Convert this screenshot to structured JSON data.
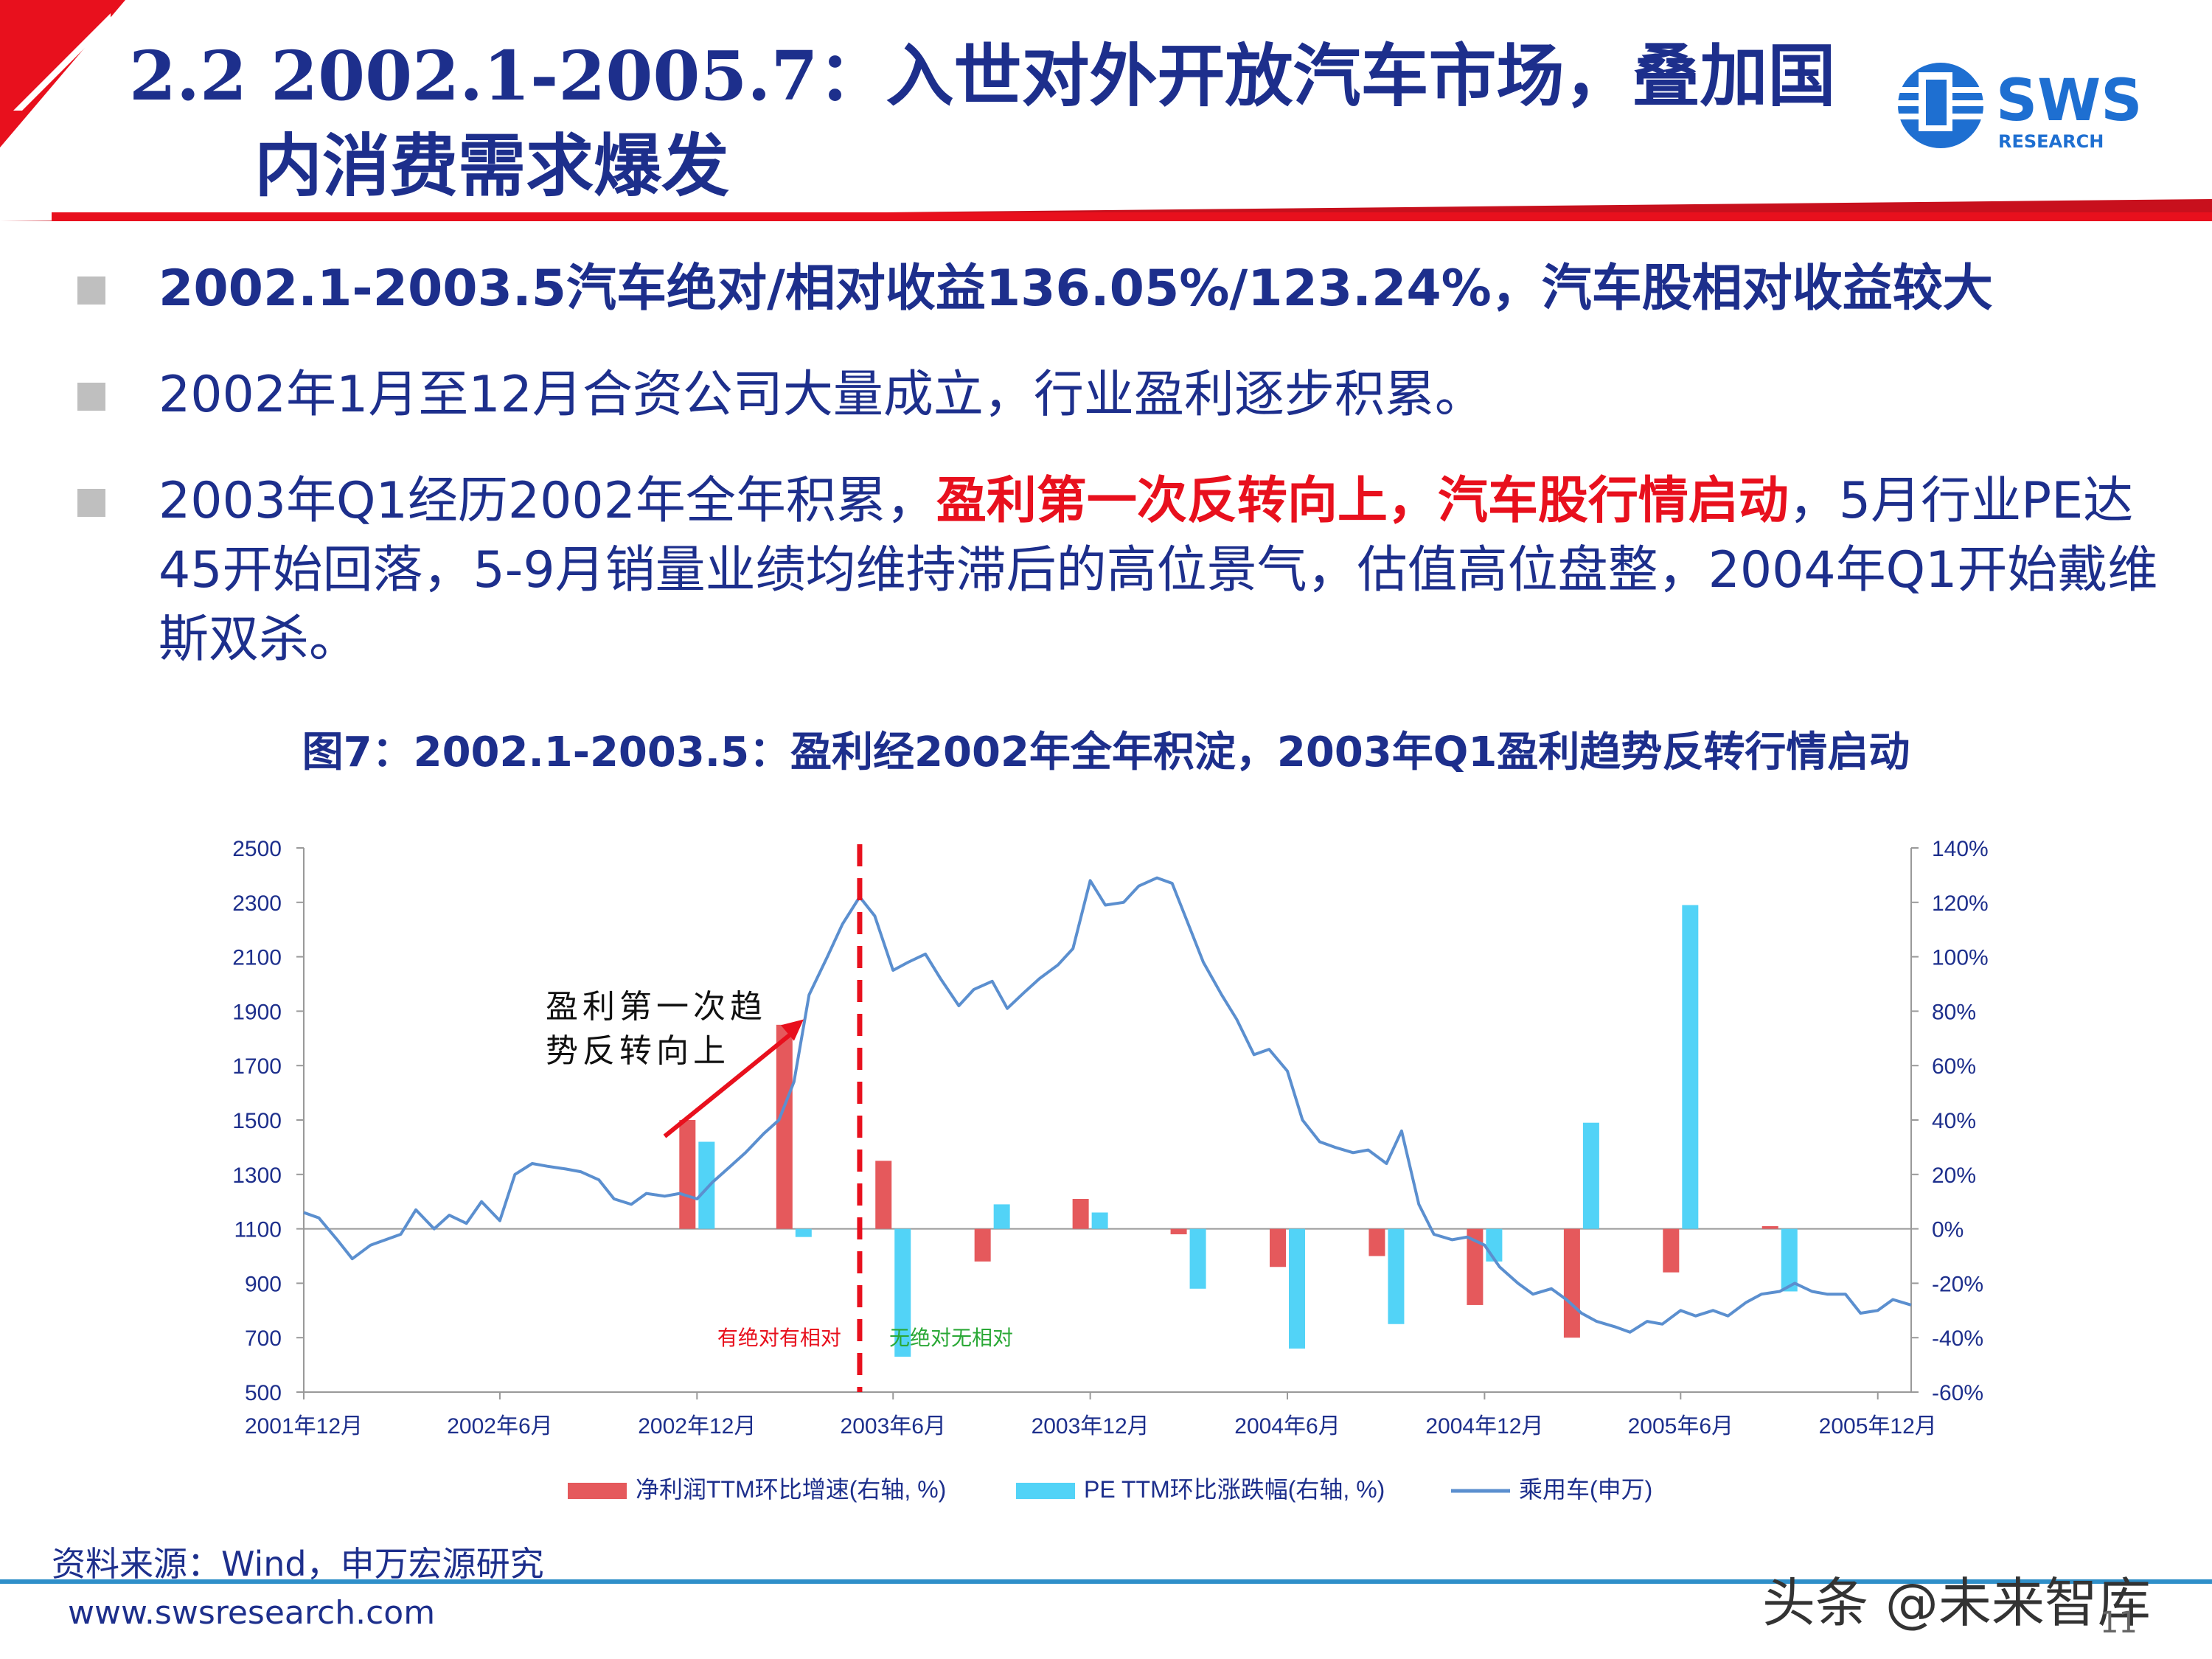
{
  "header": {
    "title_line1": "2.2 2002.1-2005.7：入世对外开放汽车市场，叠加国",
    "title_line2": "内消费需求爆发",
    "logo_text": "SWS",
    "logo_sub": "RESEARCH"
  },
  "colors": {
    "navy": "#1d2f8c",
    "red": "#e8101d",
    "bar_red": "#e5595c",
    "bar_cyan": "#52d3f7",
    "line_blue": "#5b8fcf"
  },
  "bullets": [
    {
      "text": "2002.1-2003.5汽车绝对/相对收益136.05%/123.24%，汽车股相对收益较大"
    },
    {
      "text": "2002年1月至12月合资公司大量成立，行业盈利逐步积累。"
    },
    {
      "before": "2003年Q1经历2002年全年积累，",
      "highlight": "盈利第一次反转向上，汽车股行情启动",
      "after": "，5月行业PE达45开始回落，5-9月销量业绩均维持滞后的高位景气，估值高位盘整，2004年Q1开始戴维斯双杀。"
    }
  ],
  "figure_title": "图7：2002.1-2003.5：盈利经2002年全年积淀，2003年Q1盈利趋势反转行情启动",
  "chart_data": {
    "type": "bar+line",
    "left_axis": {
      "min": 500,
      "max": 2500,
      "ticks": [
        "2500",
        "2300",
        "2100",
        "1900",
        "1700",
        "1500",
        "1300",
        "1100",
        "900",
        "700",
        "500"
      ]
    },
    "right_axis": {
      "min": -60,
      "max": 140,
      "ticks": [
        "140%",
        "120%",
        "100%",
        "80%",
        "60%",
        "40%",
        "20%",
        "0%",
        "-20%",
        "-40%",
        "-60%"
      ]
    },
    "x_range": [
      "2001-12",
      "2006-01"
    ],
    "x_ticks": [
      {
        "date": "2001-12",
        "label": "2001年12月"
      },
      {
        "date": "2002-06",
        "label": "2002年6月"
      },
      {
        "date": "2002-12",
        "label": "2002年12月"
      },
      {
        "date": "2003-06",
        "label": "2003年6月"
      },
      {
        "date": "2003-12",
        "label": "2003年12月"
      },
      {
        "date": "2004-06",
        "label": "2004年6月"
      },
      {
        "date": "2004-12",
        "label": "2004年12月"
      },
      {
        "date": "2005-06",
        "label": "2005年6月"
      },
      {
        "date": "2005-12",
        "label": "2005年12月"
      }
    ],
    "bar_series": [
      {
        "name": "净利润TTM环比增速(右轴, %)",
        "color": "#e5595c",
        "points": [
          [
            "2002-12",
            40
          ],
          [
            "2003-03",
            75
          ],
          [
            "2003-06",
            25
          ],
          [
            "2003-09",
            -12
          ],
          [
            "2003-12",
            11
          ],
          [
            "2004-03",
            -2
          ],
          [
            "2004-06",
            -14
          ],
          [
            "2004-09",
            -10
          ],
          [
            "2004-12",
            -28
          ],
          [
            "2005-03",
            -40
          ],
          [
            "2005-06",
            -16
          ],
          [
            "2005-09",
            1
          ]
        ]
      },
      {
        "name": "PE TTM环比涨跌幅(右轴, %)",
        "color": "#52d3f7",
        "points": [
          [
            "2002-12",
            32
          ],
          [
            "2003-03",
            -3
          ],
          [
            "2003-06",
            -47
          ],
          [
            "2003-09",
            9
          ],
          [
            "2003-12",
            6
          ],
          [
            "2004-03",
            -22
          ],
          [
            "2004-06",
            -44
          ],
          [
            "2004-09",
            -35
          ],
          [
            "2004-12",
            -12
          ],
          [
            "2005-03",
            39
          ],
          [
            "2005-06",
            119
          ],
          [
            "2005-09",
            -23
          ]
        ]
      }
    ],
    "line_series": {
      "name": "乘用车(申万)",
      "color": "#5b8fcf",
      "points": [
        [
          "2001-12-01",
          1160
        ],
        [
          "2001-12-15",
          1140
        ],
        [
          "2002-01-01",
          1060
        ],
        [
          "2002-01-15",
          990
        ],
        [
          "2002-02-01",
          1040
        ],
        [
          "2002-02-15",
          1060
        ],
        [
          "2002-03-01",
          1080
        ],
        [
          "2002-03-15",
          1170
        ],
        [
          "2002-04-01",
          1100
        ],
        [
          "2002-04-15",
          1150
        ],
        [
          "2002-05-01",
          1120
        ],
        [
          "2002-05-15",
          1200
        ],
        [
          "2002-06-01",
          1130
        ],
        [
          "2002-06-15",
          1300
        ],
        [
          "2002-07-01",
          1340
        ],
        [
          "2002-07-15",
          1330
        ],
        [
          "2002-08-01",
          1320
        ],
        [
          "2002-08-15",
          1310
        ],
        [
          "2002-09-01",
          1280
        ],
        [
          "2002-09-15",
          1210
        ],
        [
          "2002-10-01",
          1190
        ],
        [
          "2002-10-15",
          1230
        ],
        [
          "2002-11-01",
          1220
        ],
        [
          "2002-11-15",
          1230
        ],
        [
          "2002-12-01",
          1210
        ],
        [
          "2002-12-15",
          1270
        ],
        [
          "2003-01-01",
          1330
        ],
        [
          "2003-01-15",
          1380
        ],
        [
          "2003-02-01",
          1450
        ],
        [
          "2003-02-15",
          1500
        ],
        [
          "2003-03-01",
          1640
        ],
        [
          "2003-03-15",
          1960
        ],
        [
          "2003-04-01",
          2100
        ],
        [
          "2003-04-15",
          2220
        ],
        [
          "2003-05-01",
          2320
        ],
        [
          "2003-05-15",
          2250
        ],
        [
          "2003-06-01",
          2050
        ],
        [
          "2003-06-15",
          2080
        ],
        [
          "2003-07-01",
          2110
        ],
        [
          "2003-07-15",
          2020
        ],
        [
          "2003-08-01",
          1920
        ],
        [
          "2003-08-15",
          1980
        ],
        [
          "2003-09-01",
          2010
        ],
        [
          "2003-09-15",
          1910
        ],
        [
          "2003-10-01",
          1970
        ],
        [
          "2003-10-15",
          2020
        ],
        [
          "2003-11-01",
          2070
        ],
        [
          "2003-11-15",
          2130
        ],
        [
          "2003-12-01",
          2380
        ],
        [
          "2003-12-15",
          2290
        ],
        [
          "2004-01-01",
          2300
        ],
        [
          "2004-01-15",
          2360
        ],
        [
          "2004-02-01",
          2390
        ],
        [
          "2004-02-15",
          2370
        ],
        [
          "2004-03-01",
          2220
        ],
        [
          "2004-03-15",
          2080
        ],
        [
          "2004-04-01",
          1960
        ],
        [
          "2004-04-15",
          1870
        ],
        [
          "2004-05-01",
          1740
        ],
        [
          "2004-05-15",
          1760
        ],
        [
          "2004-06-01",
          1680
        ],
        [
          "2004-06-15",
          1500
        ],
        [
          "2004-07-01",
          1420
        ],
        [
          "2004-07-15",
          1400
        ],
        [
          "2004-08-01",
          1380
        ],
        [
          "2004-08-15",
          1390
        ],
        [
          "2004-09-01",
          1340
        ],
        [
          "2004-09-15",
          1460
        ],
        [
          "2004-10-01",
          1190
        ],
        [
          "2004-10-15",
          1080
        ],
        [
          "2004-11-01",
          1060
        ],
        [
          "2004-11-15",
          1070
        ],
        [
          "2004-12-01",
          1040
        ],
        [
          "2004-12-15",
          960
        ],
        [
          "2005-01-01",
          900
        ],
        [
          "2005-01-15",
          860
        ],
        [
          "2005-02-01",
          880
        ],
        [
          "2005-02-15",
          840
        ],
        [
          "2005-03-01",
          790
        ],
        [
          "2005-03-15",
          760
        ],
        [
          "2005-04-01",
          740
        ],
        [
          "2005-04-15",
          720
        ],
        [
          "2005-05-01",
          760
        ],
        [
          "2005-05-15",
          750
        ],
        [
          "2005-06-01",
          800
        ],
        [
          "2005-06-15",
          780
        ],
        [
          "2005-07-01",
          800
        ],
        [
          "2005-07-15",
          780
        ],
        [
          "2005-08-01",
          830
        ],
        [
          "2005-08-15",
          860
        ],
        [
          "2005-09-01",
          870
        ],
        [
          "2005-09-15",
          900
        ],
        [
          "2005-10-01",
          870
        ],
        [
          "2005-10-15",
          860
        ],
        [
          "2005-11-01",
          860
        ],
        [
          "2005-11-15",
          790
        ],
        [
          "2005-12-01",
          800
        ],
        [
          "2005-12-15",
          840
        ],
        [
          "2006-01-01",
          820
        ]
      ]
    },
    "divider_date": "2003-05-01",
    "annotation": {
      "line1": "盈利第一次趋",
      "line2": "势反转向上",
      "arrow_from": [
        "2002-11-01",
        1440
      ],
      "arrow_to": [
        "2003-03-10",
        1870
      ]
    },
    "zone_left_label": "有绝对有相对",
    "zone_right_label": "无绝对无相对",
    "legend": [
      "净利润TTM环比增速(右轴, %)",
      "PE TTM环比涨跌幅(右轴, %)",
      "乘用车(申万)"
    ]
  },
  "source": "资料来源：Wind，申万宏源研究",
  "footer": {
    "url": "www.swsresearch.com",
    "watermark": "头条 @未来智库",
    "page_number": "11"
  }
}
